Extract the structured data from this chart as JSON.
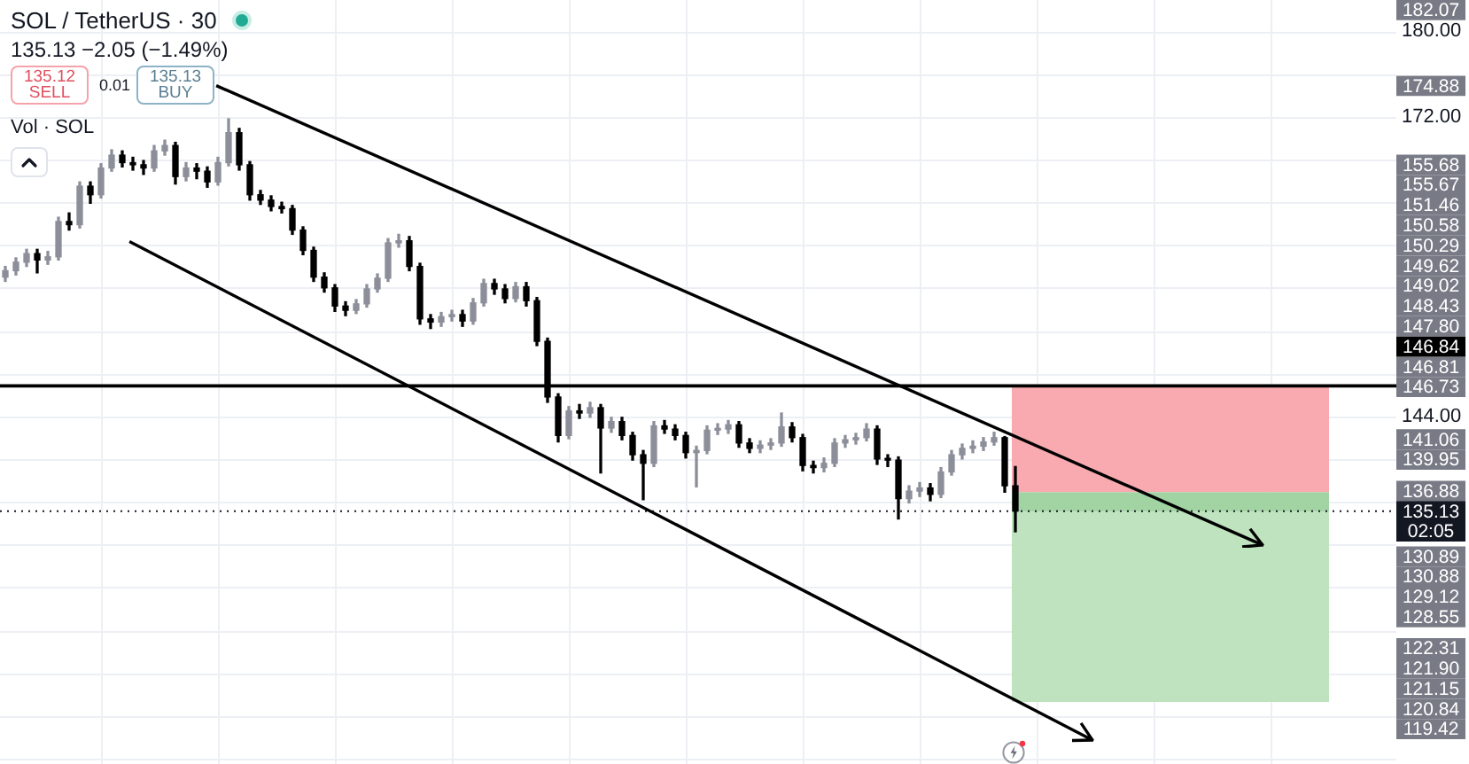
{
  "chart_data": {
    "type": "candlestick",
    "title": "SOL / TetherUS · 30",
    "subtitle": "135.13 −2.05 (−1.49%)",
    "categories": [
      null,
      null,
      null,
      null,
      null,
      null,
      null,
      null,
      null,
      null,
      null,
      null,
      null,
      null,
      null,
      null,
      null,
      null,
      null,
      null,
      null,
      null,
      null,
      null,
      null,
      null,
      null,
      null,
      null,
      null,
      null,
      null,
      null,
      null,
      null,
      null,
      null,
      null,
      null,
      null,
      null,
      null,
      null,
      null,
      null,
      null,
      null,
      null,
      null,
      null,
      null,
      null,
      null,
      null,
      null,
      null,
      null,
      null,
      null,
      null,
      null,
      null,
      null,
      null,
      null,
      null,
      null,
      null,
      null,
      null,
      null,
      null,
      null,
      null,
      null,
      null,
      null,
      null,
      null,
      null,
      null,
      null,
      null,
      null,
      null,
      null,
      null,
      null,
      null,
      null,
      null,
      null,
      null,
      null,
      null,
      null,
      null,
      null,
      null,
      null,
      null,
      null,
      null,
      null,
      null,
      null,
      null,
      null,
      null,
      null,
      null,
      null,
      null,
      null,
      null,
      null,
      null,
      null,
      null,
      null,
      null,
      null,
      null,
      null,
      null
    ],
    "ohlc": [
      [
        157.0,
        158.0,
        156.6,
        157.6
      ],
      [
        157.6,
        158.8,
        157.2,
        158.4
      ],
      [
        158.4,
        159.6,
        158.0,
        159.2
      ],
      [
        159.2,
        159.6,
        157.4,
        158.6
      ],
      [
        158.6,
        159.4,
        158.2,
        158.9
      ],
      [
        158.9,
        162.6,
        158.6,
        162.2
      ],
      [
        162.2,
        163.0,
        161.4,
        161.9
      ],
      [
        161.9,
        165.9,
        161.6,
        165.5
      ],
      [
        165.5,
        165.9,
        163.9,
        164.7
      ],
      [
        164.7,
        167.6,
        164.4,
        167.2
      ],
      [
        167.2,
        168.9,
        166.9,
        168.4
      ],
      [
        168.4,
        168.8,
        167.3,
        167.7
      ],
      [
        167.7,
        168.2,
        167.0,
        167.5
      ],
      [
        167.5,
        167.9,
        166.6,
        167.2
      ],
      [
        167.2,
        169.3,
        166.9,
        168.8
      ],
      [
        168.8,
        169.8,
        168.4,
        169.3
      ],
      [
        169.3,
        169.6,
        165.7,
        166.4
      ],
      [
        166.4,
        167.7,
        166.0,
        167.2
      ],
      [
        167.2,
        167.6,
        166.2,
        166.9
      ],
      [
        166.9,
        167.3,
        165.4,
        165.9
      ],
      [
        165.9,
        168.2,
        165.6,
        167.7
      ],
      [
        167.7,
        171.8,
        167.4,
        170.5
      ],
      [
        170.5,
        170.9,
        167.0,
        167.5
      ],
      [
        167.5,
        167.8,
        164.2,
        164.7
      ],
      [
        164.7,
        165.1,
        163.8,
        164.2
      ],
      [
        164.2,
        164.6,
        163.2,
        163.6
      ],
      [
        163.6,
        164.0,
        163.0,
        163.4
      ],
      [
        163.4,
        163.7,
        161.0,
        161.4
      ],
      [
        161.4,
        161.7,
        159.1,
        159.5
      ],
      [
        159.5,
        159.8,
        156.6,
        157.0
      ],
      [
        157.0,
        157.4,
        155.6,
        156.0
      ],
      [
        156.0,
        156.3,
        153.8,
        154.3
      ],
      [
        154.3,
        154.7,
        153.4,
        153.9
      ],
      [
        153.9,
        154.9,
        153.6,
        154.5
      ],
      [
        154.5,
        156.3,
        154.2,
        155.9
      ],
      [
        155.9,
        157.3,
        155.6,
        156.9
      ],
      [
        156.9,
        160.6,
        156.6,
        160.2
      ],
      [
        160.2,
        161.0,
        159.8,
        160.4
      ],
      [
        160.4,
        160.8,
        157.6,
        158.0
      ],
      [
        158.0,
        158.3,
        152.6,
        153.1
      ],
      [
        153.1,
        153.5,
        152.2,
        152.8
      ],
      [
        152.8,
        153.7,
        152.4,
        153.3
      ],
      [
        153.3,
        153.9,
        152.9,
        153.5
      ],
      [
        153.5,
        153.9,
        152.4,
        152.9
      ],
      [
        152.9,
        155.0,
        152.6,
        154.6
      ],
      [
        154.6,
        156.8,
        154.3,
        156.4
      ],
      [
        156.4,
        156.8,
        155.4,
        155.9
      ],
      [
        155.9,
        156.3,
        154.6,
        155.0
      ],
      [
        155.0,
        156.5,
        154.7,
        156.1
      ],
      [
        156.1,
        156.5,
        154.3,
        154.8
      ],
      [
        154.8,
        155.1,
        150.6,
        151.0
      ],
      [
        151.0,
        151.3,
        145.3,
        145.8
      ],
      [
        145.8,
        146.1,
        141.6,
        142.2
      ],
      [
        142.2,
        144.9,
        141.9,
        144.5
      ],
      [
        144.5,
        145.1,
        143.8,
        144.3
      ],
      [
        144.3,
        145.3,
        143.9,
        144.8
      ],
      [
        144.8,
        145.1,
        138.7,
        142.9
      ],
      [
        142.9,
        143.9,
        142.5,
        143.5
      ],
      [
        143.5,
        143.9,
        141.8,
        142.2
      ],
      [
        142.2,
        142.5,
        139.9,
        140.4
      ],
      [
        140.4,
        140.8,
        136.2,
        139.6
      ],
      [
        139.6,
        143.5,
        139.3,
        143.1
      ],
      [
        143.1,
        143.6,
        142.4,
        142.8
      ],
      [
        142.8,
        143.2,
        141.8,
        142.2
      ],
      [
        142.2,
        142.5,
        140.1,
        140.6
      ],
      [
        140.6,
        141.2,
        137.4,
        140.8
      ],
      [
        140.8,
        143.1,
        140.5,
        142.7
      ],
      [
        142.7,
        143.3,
        142.3,
        142.8
      ],
      [
        142.8,
        143.6,
        142.4,
        143.2
      ],
      [
        143.2,
        143.5,
        141.1,
        141.5
      ],
      [
        141.5,
        141.9,
        140.6,
        141.0
      ],
      [
        141.0,
        141.7,
        140.6,
        141.3
      ],
      [
        141.3,
        141.9,
        140.9,
        141.5
      ],
      [
        141.5,
        144.3,
        141.2,
        143.0
      ],
      [
        143.0,
        143.4,
        141.6,
        142.0
      ],
      [
        142.0,
        142.3,
        138.9,
        139.4
      ],
      [
        139.4,
        139.8,
        138.7,
        139.2
      ],
      [
        139.2,
        140.1,
        138.8,
        139.6
      ],
      [
        139.6,
        141.9,
        139.3,
        141.5
      ],
      [
        141.5,
        142.2,
        141.1,
        141.8
      ],
      [
        141.8,
        142.4,
        141.4,
        142.0
      ],
      [
        142.0,
        143.3,
        141.7,
        142.8
      ],
      [
        142.8,
        143.1,
        139.5,
        140.0
      ],
      [
        140.0,
        140.4,
        139.3,
        139.9
      ],
      [
        139.9,
        140.2,
        134.4,
        136.3
      ],
      [
        136.3,
        137.5,
        135.9,
        137.0
      ],
      [
        137.0,
        137.8,
        136.5,
        137.3
      ],
      [
        137.3,
        137.7,
        136.1,
        136.7
      ],
      [
        136.7,
        139.2,
        136.4,
        138.8
      ],
      [
        138.8,
        140.8,
        138.5,
        140.4
      ],
      [
        140.4,
        141.4,
        140.0,
        141.0
      ],
      [
        141.0,
        141.7,
        140.6,
        141.2
      ],
      [
        141.2,
        142.0,
        140.8,
        141.6
      ],
      [
        141.6,
        142.5,
        141.3,
        142.0
      ],
      [
        142.0,
        142.1,
        136.9,
        137.5
      ],
      [
        137.5,
        139.3,
        133.2,
        135.13
      ],
      null,
      null,
      null,
      null,
      null,
      null,
      null,
      null,
      null,
      null,
      null,
      null,
      null,
      null,
      null,
      null,
      null,
      null,
      null,
      null,
      null,
      null,
      null,
      null,
      null,
      null,
      null,
      null,
      null
    ],
    "colors": [
      "#8c8f99",
      "#8c8f99",
      "#8c8f99",
      "#000000",
      "#8c8f99",
      "#8c8f99",
      "#000000",
      "#8c8f99",
      "#000000",
      "#8c8f99",
      "#8c8f99",
      "#000000",
      "#000000",
      "#000000",
      "#8c8f99",
      "#8c8f99",
      "#000000",
      "#8c8f99",
      "#000000",
      "#000000",
      "#8c8f99",
      "#8c8f99",
      "#000000",
      "#000000",
      "#000000",
      "#000000",
      "#000000",
      "#000000",
      "#000000",
      "#000000",
      "#000000",
      "#000000",
      "#000000",
      "#8c8f99",
      "#8c8f99",
      "#8c8f99",
      "#8c8f99",
      "#8c8f99",
      "#000000",
      "#000000",
      "#000000",
      "#8c8f99",
      "#8c8f99",
      "#000000",
      "#8c8f99",
      "#8c8f99",
      "#000000",
      "#000000",
      "#8c8f99",
      "#000000",
      "#000000",
      "#000000",
      "#000000",
      "#8c8f99",
      "#000000",
      "#8c8f99",
      "#000000",
      "#8c8f99",
      "#000000",
      "#000000",
      "#000000",
      "#8c8f99",
      "#000000",
      "#000000",
      "#000000",
      "#8c8f99",
      "#8c8f99",
      "#8c8f99",
      "#8c8f99",
      "#000000",
      "#000000",
      "#8c8f99",
      "#8c8f99",
      "#8c8f99",
      "#000000",
      "#000000",
      "#000000",
      "#8c8f99",
      "#8c8f99",
      "#8c8f99",
      "#8c8f99",
      "#8c8f99",
      "#000000",
      "#000000",
      "#000000",
      "#8c8f99",
      "#8c8f99",
      "#000000",
      "#8c8f99",
      "#8c8f99",
      "#8c8f99",
      "#8c8f99",
      "#8c8f99",
      "#8c8f99",
      "#000000",
      "#000000",
      null,
      null,
      null,
      null,
      null,
      null,
      null,
      null,
      null,
      null,
      null,
      null,
      null,
      null,
      null,
      null,
      null,
      null,
      null,
      null,
      null,
      null,
      null,
      null,
      null,
      null,
      null,
      null,
      null
    ],
    "ylim": [
      111.5,
      182.9
    ],
    "yticks": [
      {
        "value": 112,
        "label": null
      },
      {
        "value": 116,
        "label": null
      },
      {
        "value": 120,
        "label": null
      },
      {
        "value": 124,
        "label": null
      },
      {
        "value": 128,
        "label": null
      },
      {
        "value": 132,
        "label": null
      },
      {
        "value": 136,
        "label": null
      },
      {
        "value": 140,
        "label": null
      },
      {
        "value": 144,
        "label": "144.00"
      },
      {
        "value": 148,
        "label": null
      },
      {
        "value": 152,
        "label": null
      },
      {
        "value": 156,
        "label": null
      },
      {
        "value": 160,
        "label": null
      },
      {
        "value": 164,
        "label": null
      },
      {
        "value": 168,
        "label": null
      },
      {
        "value": 172,
        "label": "172.00"
      },
      {
        "value": 176,
        "label": null
      },
      {
        "value": 180,
        "label": "180.00"
      }
    ],
    "ref_lines": [
      {
        "axis": "y",
        "value": 146.84,
        "label": "146.84",
        "color": "#000000"
      },
      {
        "axis": "y",
        "value": 135.13,
        "label": "135.13\n02:05",
        "color": "#131722",
        "line_style": "dotted"
      }
    ],
    "bands": [
      {
        "axis": "y",
        "from": 136.88,
        "to": 146.73,
        "color": "#f8aab0"
      },
      {
        "axis": "y",
        "from": 117.3,
        "to": 136.88,
        "color": "#bfe3bf"
      },
      {
        "axis": "y",
        "from": 135.13,
        "to": 136.88,
        "color": "#a2d4a3"
      }
    ],
    "annotations": [
      "135.12",
      "SELL",
      "0.01",
      "135.13",
      "BUY",
      "Vol · SOL",
      "182.07",
      "174.88",
      "155.68",
      "155.67",
      "151.46",
      "150.58",
      "150.29",
      "149.62",
      "149.02",
      "148.43",
      "147.80",
      "146.81",
      "146.73",
      "141.06",
      "139.95",
      "136.88",
      "130.89",
      "130.88",
      "129.12",
      "128.55",
      "122.31",
      "121.90",
      "121.15",
      "120.84",
      "119.42"
    ],
    "grid": true,
    "tick_labels": "y"
  }
}
